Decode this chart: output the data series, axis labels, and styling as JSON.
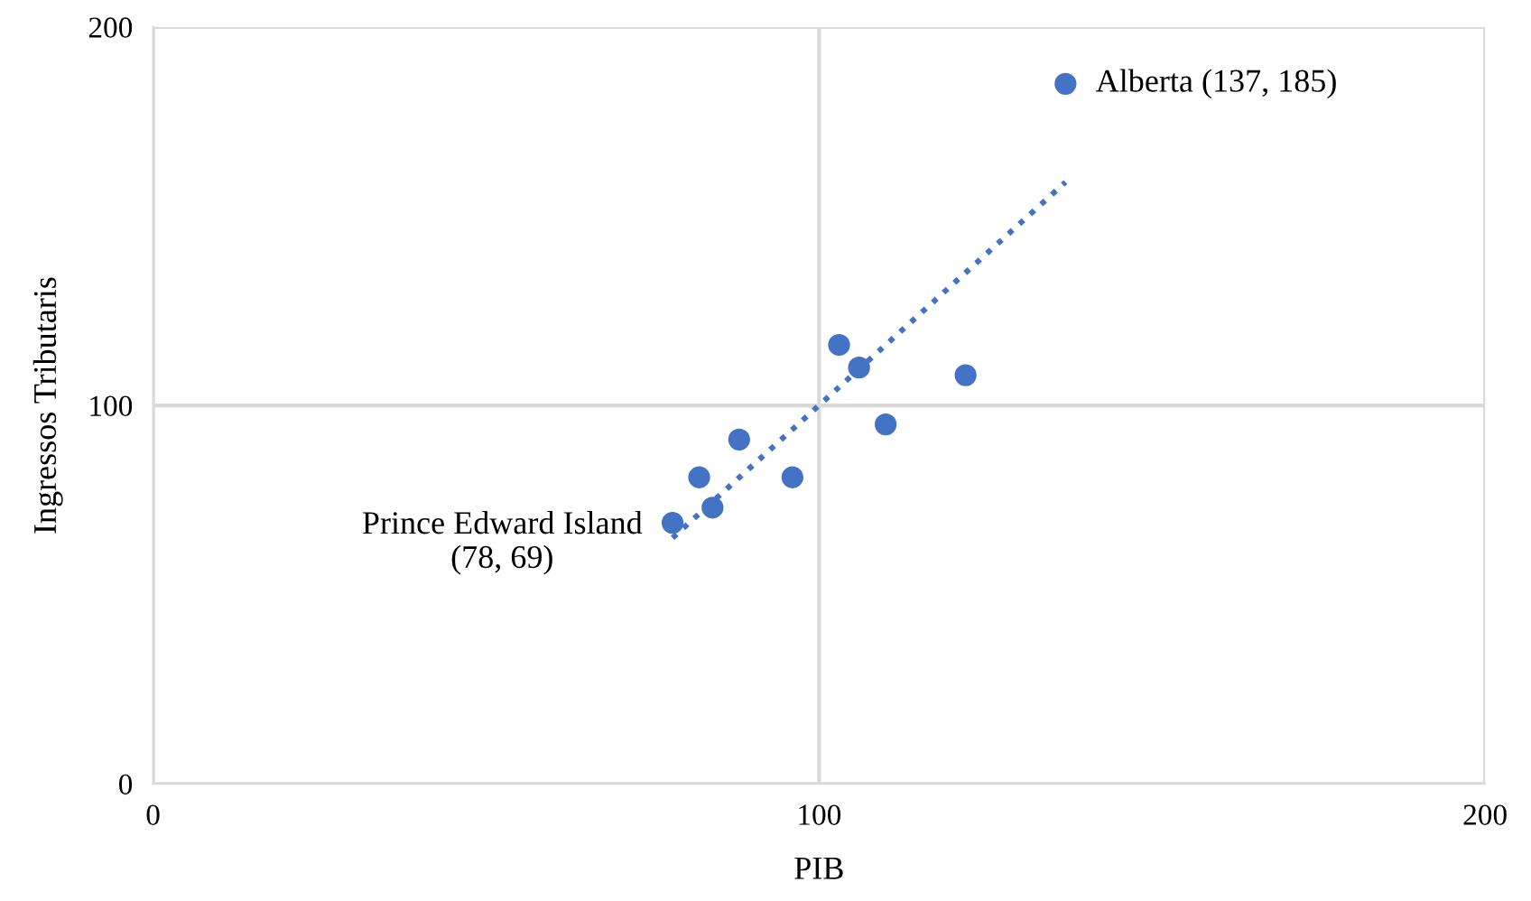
{
  "chart_data": {
    "type": "scatter",
    "xlabel": "PIB",
    "ylabel": "Ingressos Tributaris",
    "xlim": [
      0,
      200
    ],
    "ylim": [
      0,
      200
    ],
    "xticks": [
      0,
      100,
      200
    ],
    "yticks": [
      0,
      100,
      200
    ],
    "grid": true,
    "marker": "circle",
    "series": [
      {
        "color": "#4472c4",
        "x": [
          78,
          82,
          84,
          88,
          96,
          103,
          106,
          110,
          122,
          137
        ],
        "values": [
          69,
          81,
          73,
          91,
          81,
          116,
          110,
          95,
          108,
          185
        ]
      },
      {
        "type": "line",
        "color": "#4472c4",
        "line_style": "dotted",
        "marker": "none",
        "x": [
          78,
          137
        ],
        "values": [
          65,
          159
        ]
      }
    ],
    "annotations": [
      {
        "text": "Alberta (137, 185)",
        "x": 137,
        "y": 185
      },
      {
        "text": "Prince Edward Island\n(78, 69)",
        "x": 78,
        "y": 69
      }
    ]
  }
}
